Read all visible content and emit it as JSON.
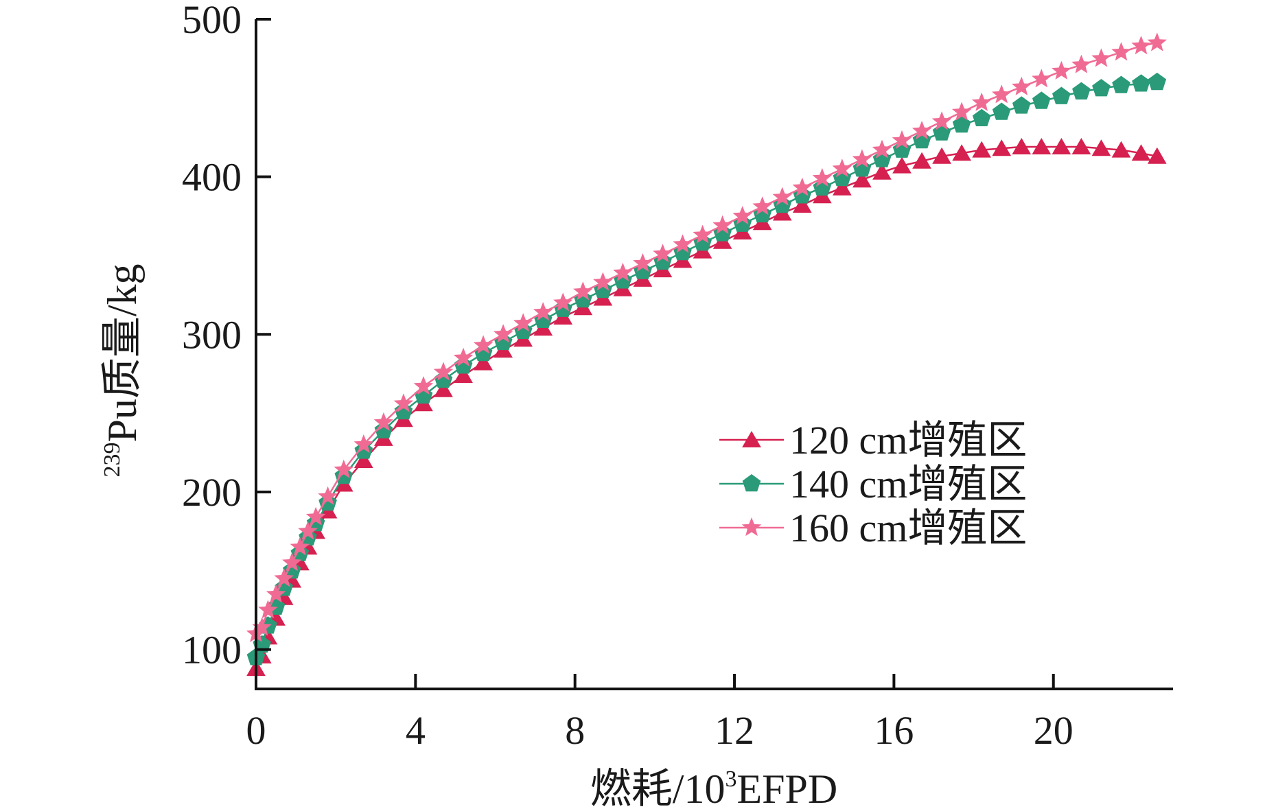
{
  "chart_data": {
    "type": "line",
    "title": "",
    "xlabel_parts": {
      "prefix": "燃耗/10",
      "sup": "3",
      "suffix": "EFPD"
    },
    "ylabel_parts": {
      "sup": "239",
      "main": "Pu质量/kg"
    },
    "xlim": [
      0,
      23
    ],
    "ylim": [
      75,
      500
    ],
    "x_ticks": [
      0,
      4,
      8,
      12,
      16,
      20
    ],
    "x_tick_labels": [
      "0",
      "4",
      "8",
      "12",
      "16",
      "20"
    ],
    "y_ticks": [
      100,
      200,
      300,
      400,
      500
    ],
    "y_tick_labels": [
      "100",
      "200",
      "300",
      "400",
      "500"
    ],
    "grid": false,
    "legend_position": "center-right",
    "x": [
      0,
      0.15,
      0.3,
      0.5,
      0.7,
      0.9,
      1.1,
      1.3,
      1.5,
      1.8,
      2.2,
      2.7,
      3.2,
      3.7,
      4.2,
      4.7,
      5.2,
      5.7,
      6.2,
      6.7,
      7.2,
      7.7,
      8.2,
      8.7,
      9.2,
      9.7,
      10.2,
      10.7,
      11.2,
      11.7,
      12.2,
      12.7,
      13.2,
      13.7,
      14.2,
      14.7,
      15.2,
      15.7,
      16.2,
      16.7,
      17.2,
      17.7,
      18.2,
      18.7,
      19.2,
      19.7,
      20.2,
      20.7,
      21.2,
      21.7,
      22.2,
      22.6
    ],
    "series": [
      {
        "name": "120 cm增殖区",
        "color": "#d6204f",
        "marker": "triangle",
        "values": [
          88,
          96,
          108,
          120,
          133,
          144,
          155,
          165,
          175,
          188,
          205,
          220,
          234,
          246,
          256,
          265,
          274,
          282,
          290,
          297,
          304,
          311,
          317,
          323,
          329,
          335,
          341,
          347,
          353,
          359,
          365,
          371,
          377,
          382,
          388,
          393,
          398,
          403,
          407,
          410,
          413,
          415,
          417,
          418,
          419,
          419,
          419,
          419,
          418,
          417,
          415,
          413
        ]
      },
      {
        "name": "140 cm增殖区",
        "color": "#2a9a78",
        "marker": "pentagon",
        "values": [
          95,
          103,
          115,
          127,
          139,
          150,
          161,
          171,
          180,
          193,
          210,
          226,
          239,
          251,
          261,
          271,
          280,
          288,
          295,
          302,
          309,
          316,
          322,
          328,
          334,
          340,
          346,
          352,
          358,
          364,
          370,
          376,
          382,
          388,
          393,
          399,
          405,
          411,
          417,
          423,
          428,
          433,
          437,
          441,
          445,
          448,
          451,
          454,
          456,
          458,
          459,
          460
        ]
      },
      {
        "name": "160 cm增殖区",
        "color": "#f06b94",
        "marker": "star",
        "values": [
          110,
          114,
          125,
          135,
          145,
          155,
          165,
          175,
          184,
          197,
          214,
          230,
          244,
          256,
          267,
          276,
          285,
          293,
          300,
          307,
          314,
          320,
          327,
          333,
          339,
          345,
          351,
          357,
          363,
          369,
          375,
          381,
          387,
          393,
          399,
          405,
          411,
          417,
          423,
          429,
          435,
          441,
          447,
          452,
          457,
          462,
          467,
          471,
          475,
          479,
          483,
          485
        ]
      }
    ]
  }
}
